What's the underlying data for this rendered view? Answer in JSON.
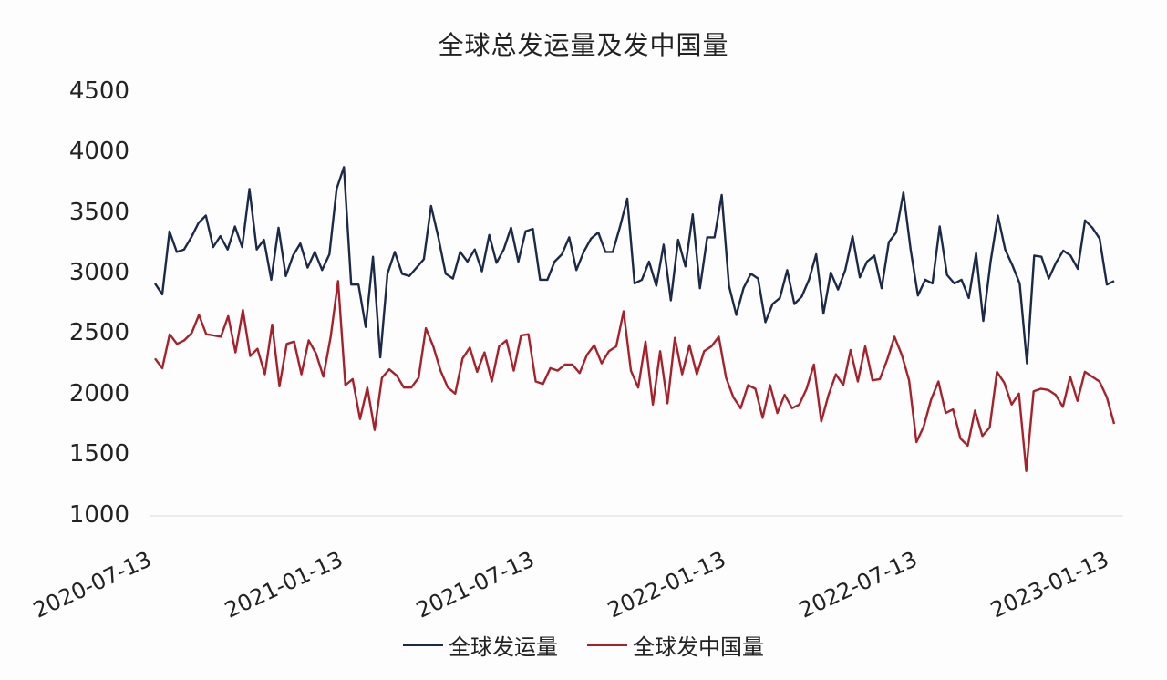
{
  "chart_data": {
    "type": "line",
    "title": "全球总发运量及发中国量",
    "xlabel": "",
    "ylabel": "",
    "ylim": [
      1000,
      4500
    ],
    "yticks": [
      1000,
      1500,
      2000,
      2500,
      3000,
      3500,
      4000,
      4500
    ],
    "xtick_labels": [
      "2020-07-13",
      "2021-01-13",
      "2021-07-13",
      "2022-01-13",
      "2022-07-13",
      "2023-01-13"
    ],
    "grid": false,
    "legend_position": "bottom",
    "frequency": "weekly",
    "series": [
      {
        "name": "全球发运量",
        "color": "#1c2a4a",
        "values": [
          2920,
          2830,
          3350,
          3180,
          3200,
          3300,
          3420,
          3480,
          3220,
          3310,
          3200,
          3390,
          3220,
          3700,
          3200,
          3280,
          2950,
          3380,
          2980,
          3150,
          3250,
          3050,
          3180,
          3030,
          3160,
          3700,
          3880,
          2910,
          2910,
          2560,
          3140,
          2310,
          3000,
          3180,
          3000,
          2980,
          3050,
          3120,
          3560,
          3300,
          3000,
          2960,
          3180,
          3100,
          3200,
          3020,
          3320,
          3090,
          3200,
          3380,
          3100,
          3350,
          3370,
          2950,
          2950,
          3100,
          3160,
          3300,
          3030,
          3180,
          3290,
          3340,
          3180,
          3180,
          3390,
          3620,
          2920,
          2950,
          3100,
          2900,
          3240,
          2780,
          3280,
          3060,
          3490,
          2880,
          3300,
          3300,
          3650,
          2900,
          2660,
          2880,
          3000,
          2960,
          2600,
          2750,
          2800,
          3030,
          2750,
          2810,
          2950,
          3160,
          2670,
          3010,
          2870,
          3030,
          3310,
          2970,
          3100,
          3150,
          2880,
          3260,
          3340,
          3670,
          3200,
          2820,
          2950,
          2920,
          3390,
          2990,
          2920,
          2950,
          2800,
          3170,
          2610,
          3100,
          3480,
          3200,
          3070,
          2920,
          2260,
          3150,
          3140,
          2960,
          3090,
          3190,
          3150,
          3040,
          3440,
          3380,
          3290,
          2910,
          2940
        ]
      },
      {
        "name": "全球发中国量",
        "color": "#a8202a",
        "values": [
          2300,
          2220,
          2500,
          2420,
          2450,
          2510,
          2660,
          2500,
          2490,
          2480,
          2650,
          2350,
          2700,
          2320,
          2380,
          2170,
          2580,
          2070,
          2420,
          2440,
          2170,
          2450,
          2340,
          2150,
          2480,
          2940,
          2080,
          2130,
          1800,
          2060,
          1710,
          2140,
          2210,
          2160,
          2060,
          2060,
          2140,
          2550,
          2400,
          2200,
          2060,
          2010,
          2300,
          2390,
          2190,
          2350,
          2110,
          2400,
          2450,
          2200,
          2490,
          2500,
          2110,
          2090,
          2220,
          2200,
          2250,
          2250,
          2180,
          2330,
          2410,
          2260,
          2360,
          2400,
          2690,
          2200,
          2060,
          2440,
          1920,
          2360,
          1930,
          2470,
          2170,
          2410,
          2170,
          2360,
          2400,
          2480,
          2140,
          1980,
          1890,
          2080,
          2050,
          1810,
          2080,
          1850,
          2000,
          1890,
          1920,
          2050,
          2250,
          1780,
          2000,
          2170,
          2080,
          2370,
          2110,
          2400,
          2120,
          2130,
          2290,
          2480,
          2330,
          2120,
          1610,
          1740,
          1960,
          2110,
          1850,
          1880,
          1640,
          1580,
          1870,
          1660,
          1730,
          2190,
          2100,
          1920,
          2010,
          1370,
          2030,
          2050,
          2040,
          2000,
          1900,
          2150,
          1950,
          2190,
          2150,
          2110,
          1980,
          1760
        ]
      }
    ]
  },
  "title": "全球总发运量及发中国量",
  "y_axis": {
    "labels": [
      "4500",
      "4000",
      "3500",
      "3000",
      "2500",
      "2000",
      "1500",
      "1000"
    ]
  },
  "x_axis": {
    "labels": [
      "2020-07-13",
      "2021-01-13",
      "2021-07-13",
      "2022-01-13",
      "2022-07-13",
      "2023-01-13"
    ]
  },
  "legend": {
    "items": [
      {
        "label": "全球发运量",
        "color": "#1c2a4a"
      },
      {
        "label": "全球发中国量",
        "color": "#a8202a"
      }
    ]
  }
}
